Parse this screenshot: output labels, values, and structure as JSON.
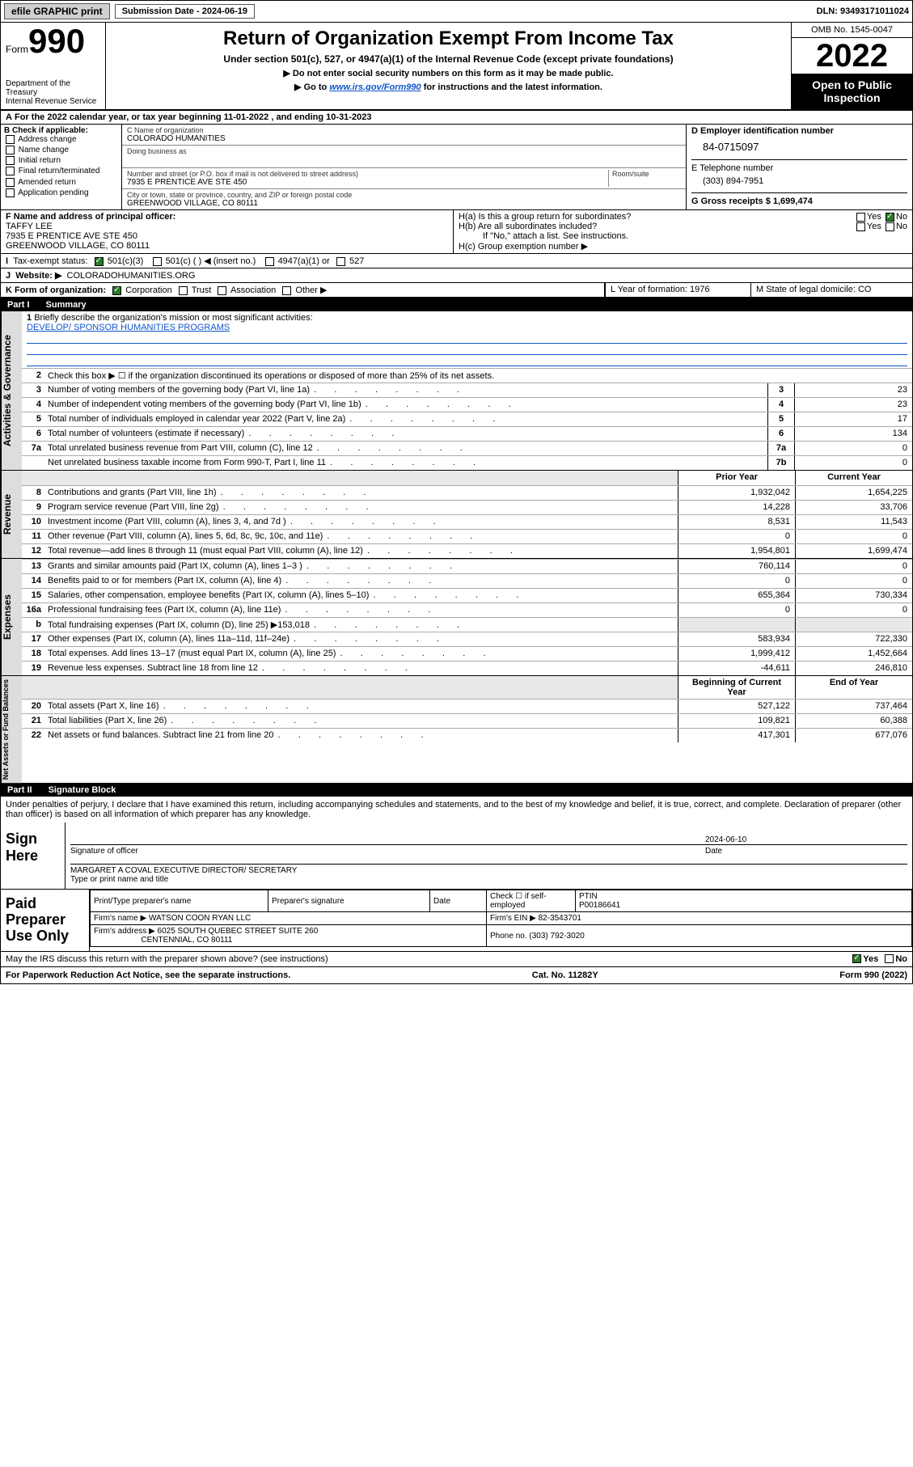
{
  "topbar": {
    "efile": "efile GRAPHIC print",
    "subdate_label": "Submission Date - 2024-06-19",
    "dln": "DLN: 93493171011024"
  },
  "header": {
    "form_word": "Form",
    "form_num": "990",
    "dept": "Department of the Treasury",
    "irs": "Internal Revenue Service",
    "title": "Return of Organization Exempt From Income Tax",
    "sub": "Under section 501(c), 527, or 4947(a)(1) of the Internal Revenue Code (except private foundations)",
    "note1": "▶ Do not enter social security numbers on this form as it may be made public.",
    "note2_pre": "▶ Go to ",
    "note2_link": "www.irs.gov/Form990",
    "note2_post": " for instructions and the latest information.",
    "omb": "OMB No. 1545-0047",
    "year": "2022",
    "open": "Open to Public Inspection"
  },
  "A": {
    "text": "For the 2022 calendar year, or tax year beginning 11-01-2022   , and ending 10-31-2023"
  },
  "B": {
    "label": "B Check if applicable:",
    "opts": [
      "Address change",
      "Name change",
      "Initial return",
      "Final return/terminated",
      "Amended return",
      "Application pending"
    ]
  },
  "C": {
    "name_lbl": "C Name of organization",
    "name": "COLORADO HUMANITIES",
    "dba_lbl": "Doing business as",
    "street_lbl": "Number and street (or P.O. box if mail is not delivered to street address)",
    "room_lbl": "Room/suite",
    "street": "7935 E PRENTICE AVE STE 450",
    "city_lbl": "City or town, state or province, country, and ZIP or foreign postal code",
    "city": "GREENWOOD VILLAGE, CO  80111"
  },
  "D": {
    "label": "D Employer identification number",
    "ein": "84-0715097"
  },
  "E": {
    "label": "E Telephone number",
    "phone": "(303) 894-7951"
  },
  "G": {
    "label": "G Gross receipts $ 1,699,474"
  },
  "F": {
    "label": "F  Name and address of principal officer:",
    "name": "TAFFY LEE",
    "addr1": "7935 E PRENTICE AVE STE 450",
    "addr2": "GREENWOOD VILLAGE, CO  80111"
  },
  "H": {
    "a": "H(a)  Is this a group return for subordinates?",
    "b": "H(b)  Are all subordinates included?",
    "b_note": "If \"No,\" attach a list. See instructions.",
    "c": "H(c)  Group exemption number ▶",
    "yes": "Yes",
    "no": "No"
  },
  "I": {
    "label": "Tax-exempt status:",
    "o1": "501(c)(3)",
    "o2": "501(c) (  ) ◀ (insert no.)",
    "o3": "4947(a)(1) or",
    "o4": "527"
  },
  "J": {
    "label": "Website: ▶",
    "val": "COLORADOHUMANITIES.ORG"
  },
  "K": {
    "label": "K Form of organization:",
    "o1": "Corporation",
    "o2": "Trust",
    "o3": "Association",
    "o4": "Other ▶"
  },
  "L": {
    "label": "L Year of formation: 1976"
  },
  "M": {
    "label": "M State of legal domicile: CO"
  },
  "part1": {
    "pt": "Part I",
    "ttl": "Summary"
  },
  "summary": {
    "l1_lbl": "Briefly describe the organization's mission or most significant activities:",
    "l1_val": "DEVELOP/ SPONSOR HUMANITIES PROGRAMS",
    "l2": "Check this box ▶ ☐  if the organization discontinued its operations or disposed of more than 25% of its net assets.",
    "items": [
      {
        "n": "3",
        "t": "Number of voting members of the governing body (Part VI, line 1a)",
        "k": "3",
        "v": "23"
      },
      {
        "n": "4",
        "t": "Number of independent voting members of the governing body (Part VI, line 1b)",
        "k": "4",
        "v": "23"
      },
      {
        "n": "5",
        "t": "Total number of individuals employed in calendar year 2022 (Part V, line 2a)",
        "k": "5",
        "v": "17"
      },
      {
        "n": "6",
        "t": "Total number of volunteers (estimate if necessary)",
        "k": "6",
        "v": "134"
      },
      {
        "n": "7a",
        "t": "Total unrelated business revenue from Part VIII, column (C), line 12",
        "k": "7a",
        "v": "0"
      },
      {
        "n": "",
        "t": "Net unrelated business taxable income from Form 990-T, Part I, line 11",
        "k": "7b",
        "v": "0"
      }
    ],
    "col_prior": "Prior Year",
    "col_curr": "Current Year",
    "revenue": [
      {
        "n": "8",
        "t": "Contributions and grants (Part VIII, line 1h)",
        "p": "1,932,042",
        "c": "1,654,225"
      },
      {
        "n": "9",
        "t": "Program service revenue (Part VIII, line 2g)",
        "p": "14,228",
        "c": "33,706"
      },
      {
        "n": "10",
        "t": "Investment income (Part VIII, column (A), lines 3, 4, and 7d )",
        "p": "8,531",
        "c": "11,543"
      },
      {
        "n": "11",
        "t": "Other revenue (Part VIII, column (A), lines 5, 6d, 8c, 9c, 10c, and 11e)",
        "p": "0",
        "c": "0"
      },
      {
        "n": "12",
        "t": "Total revenue—add lines 8 through 11 (must equal Part VIII, column (A), line 12)",
        "p": "1,954,801",
        "c": "1,699,474"
      }
    ],
    "expenses": [
      {
        "n": "13",
        "t": "Grants and similar amounts paid (Part IX, column (A), lines 1–3 )",
        "p": "760,114",
        "c": "0"
      },
      {
        "n": "14",
        "t": "Benefits paid to or for members (Part IX, column (A), line 4)",
        "p": "0",
        "c": "0"
      },
      {
        "n": "15",
        "t": "Salaries, other compensation, employee benefits (Part IX, column (A), lines 5–10)",
        "p": "655,364",
        "c": "730,334"
      },
      {
        "n": "16a",
        "t": "Professional fundraising fees (Part IX, column (A), line 11e)",
        "p": "0",
        "c": "0"
      },
      {
        "n": "b",
        "t": "Total fundraising expenses (Part IX, column (D), line 25) ▶153,018",
        "p": "",
        "c": ""
      },
      {
        "n": "17",
        "t": "Other expenses (Part IX, column (A), lines 11a–11d, 11f–24e)",
        "p": "583,934",
        "c": "722,330"
      },
      {
        "n": "18",
        "t": "Total expenses. Add lines 13–17 (must equal Part IX, column (A), line 25)",
        "p": "1,999,412",
        "c": "1,452,664"
      },
      {
        "n": "19",
        "t": "Revenue less expenses. Subtract line 18 from line 12",
        "p": "-44,611",
        "c": "246,810"
      }
    ],
    "col_beg": "Beginning of Current Year",
    "col_end": "End of Year",
    "netassets": [
      {
        "n": "20",
        "t": "Total assets (Part X, line 16)",
        "p": "527,122",
        "c": "737,464"
      },
      {
        "n": "21",
        "t": "Total liabilities (Part X, line 26)",
        "p": "109,821",
        "c": "60,388"
      },
      {
        "n": "22",
        "t": "Net assets or fund balances. Subtract line 21 from line 20",
        "p": "417,301",
        "c": "677,076"
      }
    ]
  },
  "vtabs": {
    "ag": "Activities & Governance",
    "rev": "Revenue",
    "exp": "Expenses",
    "na": "Net Assets or Fund Balances"
  },
  "part2": {
    "pt": "Part II",
    "ttl": "Signature Block"
  },
  "sig": {
    "decl": "Under penalties of perjury, I declare that I have examined this return, including accompanying schedules and statements, and to the best of my knowledge and belief, it is true, correct, and complete. Declaration of preparer (other than officer) is based on all information of which preparer has any knowledge.",
    "sign_here": "Sign Here",
    "sig_off": "Signature of officer",
    "date_lbl": "Date",
    "date": "2024-06-10",
    "name": "MARGARET A COVAL  EXECUTIVE DIRECTOR/ SECRETARY",
    "name_lbl": "Type or print name and title"
  },
  "prep": {
    "label": "Paid Preparer Use Only",
    "h1": "Print/Type preparer's name",
    "h2": "Preparer's signature",
    "h3": "Date",
    "h4": "Check ☐ if self-employed",
    "h5": "PTIN",
    "ptin": "P00186641",
    "firm_lbl": "Firm's name    ▶",
    "firm": "WATSON COON RYAN LLC",
    "ein_lbl": "Firm's EIN ▶",
    "ein": "82-3543701",
    "addr_lbl": "Firm's address ▶",
    "addr1": "6025 SOUTH QUEBEC STREET SUITE 260",
    "addr2": "CENTENNIAL, CO  80111",
    "phone_lbl": "Phone no.",
    "phone": "(303) 792-3020"
  },
  "discuss": "May the IRS discuss this return with the preparer shown above? (see instructions)",
  "foot": {
    "l": "For Paperwork Reduction Act Notice, see the separate instructions.",
    "c": "Cat. No. 11282Y",
    "r": "Form 990 (2022)"
  }
}
